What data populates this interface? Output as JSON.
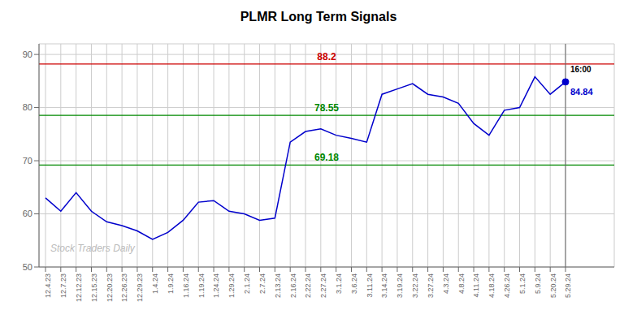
{
  "chart_data": {
    "type": "line",
    "title": "PLMR Long Term Signals",
    "categories": [
      "12.4.23",
      "12.7.23",
      "12.12.23",
      "12.15.23",
      "12.20.23",
      "12.26.23",
      "12.29.23",
      "1.4.24",
      "1.9.24",
      "1.16.24",
      "1.19.24",
      "1.24.24",
      "1.29.24",
      "2.1.24",
      "2.7.24",
      "2.13.24",
      "2.16.24",
      "2.22.24",
      "2.27.24",
      "3.1.24",
      "3.6.24",
      "3.11.24",
      "3.14.24",
      "3.19.24",
      "3.22.24",
      "3.27.24",
      "4.3.24",
      "4.8.24",
      "4.11.24",
      "4.18.24",
      "4.26.24",
      "5.1.24",
      "5.9.24",
      "5.20.24",
      "5.29.24"
    ],
    "values": [
      63.0,
      60.5,
      64.0,
      60.5,
      58.5,
      57.8,
      56.8,
      55.2,
      56.5,
      58.8,
      62.2,
      62.5,
      60.5,
      60.0,
      58.8,
      59.2,
      73.5,
      75.5,
      76.0,
      74.8,
      74.2,
      73.5,
      82.5,
      83.5,
      84.5,
      82.5,
      82.0,
      80.8,
      77.0,
      74.8,
      79.5,
      80.0,
      85.8,
      82.5,
      84.84
    ],
    "color": "#0000cc",
    "ylim": [
      50,
      92
    ],
    "yticks": [
      50,
      60,
      70,
      80,
      90
    ],
    "grid": true,
    "hlines": [
      {
        "value": 88.2,
        "color": "#cc0000"
      },
      {
        "value": 78.55,
        "color": "#008800"
      },
      {
        "value": 69.18,
        "color": "#008800"
      }
    ],
    "annotations": [
      {
        "text": "16:00"
      },
      {
        "text": "84.84",
        "color": "#0000cc"
      },
      {
        "text": "Stock Traders Daily"
      }
    ]
  }
}
